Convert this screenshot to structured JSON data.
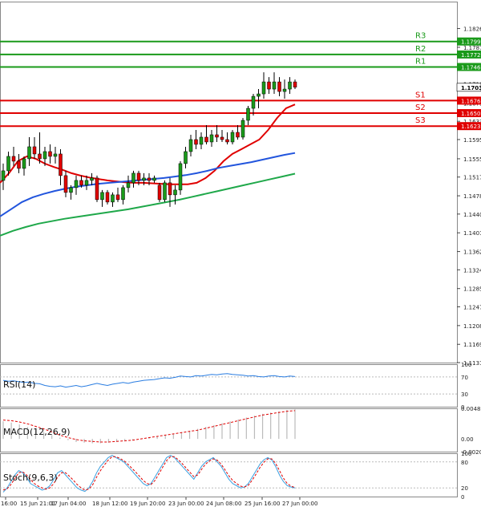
{
  "chart_data": [
    {
      "type": "line",
      "panel": "price",
      "description_note": "",
      "ylim": [
        1.1131,
        1.1882
      ],
      "y_ticks": [
        "1.18260",
        "1.17870",
        "1.17109",
        "1.16710",
        "1.16330",
        "1.15950",
        "1.15550",
        "1.15170",
        "1.14780",
        "1.14400",
        "1.14010",
        "1.13620",
        "1.13240",
        "1.12850",
        "1.12470",
        "1.12080",
        "1.11690",
        "1.11310"
      ],
      "current_price": "1.17037",
      "levels": [
        {
          "label": "R3",
          "value": 1.1799,
          "text": "1.17990",
          "color": "#1a9a1a"
        },
        {
          "label": "R2",
          "value": 1.1772,
          "text": "1.17720",
          "color": "#1a9a1a"
        },
        {
          "label": "R1",
          "value": 1.1746,
          "text": "1.17460",
          "color": "#1a9a1a"
        },
        {
          "label": "S1",
          "value": 1.1676,
          "text": "1.16760",
          "color": "#e00000"
        },
        {
          "label": "S2",
          "value": 1.165,
          "text": "1.16500",
          "color": "#e00000"
        },
        {
          "label": "S3",
          "value": 1.1623,
          "text": "1.16230",
          "color": "#e00000"
        }
      ],
      "candles": [
        {
          "o": 1.151,
          "h": 1.1545,
          "l": 1.149,
          "c": 1.153
        },
        {
          "o": 1.153,
          "h": 1.157,
          "l": 1.152,
          "c": 1.156
        },
        {
          "o": 1.156,
          "h": 1.158,
          "l": 1.154,
          "c": 1.155
        },
        {
          "o": 1.155,
          "h": 1.1565,
          "l": 1.1525,
          "c": 1.1535
        },
        {
          "o": 1.1535,
          "h": 1.156,
          "l": 1.152,
          "c": 1.1555
        },
        {
          "o": 1.1555,
          "h": 1.16,
          "l": 1.154,
          "c": 1.158
        },
        {
          "o": 1.158,
          "h": 1.16,
          "l": 1.1555,
          "c": 1.1565
        },
        {
          "o": 1.1565,
          "h": 1.161,
          "l": 1.1545,
          "c": 1.1555
        },
        {
          "o": 1.1555,
          "h": 1.158,
          "l": 1.154,
          "c": 1.157
        },
        {
          "o": 1.157,
          "h": 1.1585,
          "l": 1.1545,
          "c": 1.156
        },
        {
          "o": 1.156,
          "h": 1.158,
          "l": 1.1545,
          "c": 1.1565
        },
        {
          "o": 1.1565,
          "h": 1.1575,
          "l": 1.15,
          "c": 1.152
        },
        {
          "o": 1.152,
          "h": 1.153,
          "l": 1.1475,
          "c": 1.1485
        },
        {
          "o": 1.1485,
          "h": 1.15,
          "l": 1.147,
          "c": 1.1495
        },
        {
          "o": 1.1495,
          "h": 1.152,
          "l": 1.148,
          "c": 1.151
        },
        {
          "o": 1.151,
          "h": 1.152,
          "l": 1.1495,
          "c": 1.15
        },
        {
          "o": 1.15,
          "h": 1.152,
          "l": 1.149,
          "c": 1.151
        },
        {
          "o": 1.151,
          "h": 1.1525,
          "l": 1.15,
          "c": 1.1515
        },
        {
          "o": 1.1515,
          "h": 1.152,
          "l": 1.1465,
          "c": 1.147
        },
        {
          "o": 1.147,
          "h": 1.149,
          "l": 1.1455,
          "c": 1.1485
        },
        {
          "o": 1.1485,
          "h": 1.149,
          "l": 1.146,
          "c": 1.1465
        },
        {
          "o": 1.1465,
          "h": 1.1485,
          "l": 1.1455,
          "c": 1.148
        },
        {
          "o": 1.148,
          "h": 1.1495,
          "l": 1.1465,
          "c": 1.147
        },
        {
          "o": 1.147,
          "h": 1.15,
          "l": 1.146,
          "c": 1.1495
        },
        {
          "o": 1.1495,
          "h": 1.152,
          "l": 1.1485,
          "c": 1.1505
        },
        {
          "o": 1.1505,
          "h": 1.153,
          "l": 1.1495,
          "c": 1.1525
        },
        {
          "o": 1.1525,
          "h": 1.153,
          "l": 1.15,
          "c": 1.151
        },
        {
          "o": 1.151,
          "h": 1.1525,
          "l": 1.15,
          "c": 1.1515
        },
        {
          "o": 1.1515,
          "h": 1.1525,
          "l": 1.15,
          "c": 1.151
        },
        {
          "o": 1.151,
          "h": 1.152,
          "l": 1.1505,
          "c": 1.1515
        },
        {
          "o": 1.15,
          "h": 1.1505,
          "l": 1.1465,
          "c": 1.147
        },
        {
          "o": 1.147,
          "h": 1.151,
          "l": 1.1465,
          "c": 1.1505
        },
        {
          "o": 1.1505,
          "h": 1.1515,
          "l": 1.1455,
          "c": 1.148
        },
        {
          "o": 1.148,
          "h": 1.15,
          "l": 1.146,
          "c": 1.149
        },
        {
          "o": 1.149,
          "h": 1.155,
          "l": 1.148,
          "c": 1.1545
        },
        {
          "o": 1.1545,
          "h": 1.158,
          "l": 1.1535,
          "c": 1.157
        },
        {
          "o": 1.157,
          "h": 1.1605,
          "l": 1.156,
          "c": 1.1595
        },
        {
          "o": 1.1595,
          "h": 1.1615,
          "l": 1.1575,
          "c": 1.1585
        },
        {
          "o": 1.1585,
          "h": 1.161,
          "l": 1.1575,
          "c": 1.16
        },
        {
          "o": 1.16,
          "h": 1.1625,
          "l": 1.1585,
          "c": 1.159
        },
        {
          "o": 1.159,
          "h": 1.1615,
          "l": 1.158,
          "c": 1.1605
        },
        {
          "o": 1.1605,
          "h": 1.1625,
          "l": 1.159,
          "c": 1.16
        },
        {
          "o": 1.16,
          "h": 1.1615,
          "l": 1.159,
          "c": 1.1595
        },
        {
          "o": 1.1595,
          "h": 1.161,
          "l": 1.1585,
          "c": 1.159
        },
        {
          "o": 1.159,
          "h": 1.1615,
          "l": 1.1585,
          "c": 1.161
        },
        {
          "o": 1.161,
          "h": 1.1625,
          "l": 1.1595,
          "c": 1.16
        },
        {
          "o": 1.16,
          "h": 1.164,
          "l": 1.1595,
          "c": 1.1635
        },
        {
          "o": 1.1635,
          "h": 1.1665,
          "l": 1.1625,
          "c": 1.166
        },
        {
          "o": 1.166,
          "h": 1.169,
          "l": 1.1645,
          "c": 1.1685
        },
        {
          "o": 1.1685,
          "h": 1.17,
          "l": 1.166,
          "c": 1.169
        },
        {
          "o": 1.169,
          "h": 1.1735,
          "l": 1.168,
          "c": 1.1715
        },
        {
          "o": 1.1715,
          "h": 1.1725,
          "l": 1.169,
          "c": 1.17
        },
        {
          "o": 1.17,
          "h": 1.1735,
          "l": 1.169,
          "c": 1.1715
        },
        {
          "o": 1.1715,
          "h": 1.1725,
          "l": 1.1685,
          "c": 1.1695
        },
        {
          "o": 1.1695,
          "h": 1.172,
          "l": 1.168,
          "c": 1.17
        },
        {
          "o": 1.17,
          "h": 1.1725,
          "l": 1.169,
          "c": 1.1715
        },
        {
          "o": 1.1715,
          "h": 1.172,
          "l": 1.17,
          "c": 1.1704
        }
      ],
      "ma_series": [
        {
          "color": "#e00000",
          "values": [
            1.1505,
            1.1525,
            1.155,
            1.156,
            1.1555,
            1.1545,
            1.1538,
            1.1532,
            1.1525,
            1.152,
            1.1516,
            1.1513,
            1.151,
            1.1508,
            1.1506,
            1.1505,
            1.1505,
            1.1504,
            1.1503,
            1.1502,
            1.1502,
            1.1502,
            1.1505,
            1.1515,
            1.153,
            1.155,
            1.1565,
            1.1575,
            1.1585,
            1.1595,
            1.1615,
            1.164,
            1.166,
            1.1668
          ]
        },
        {
          "color": "#2255dd",
          "values": [
            1.1435,
            1.145,
            1.1465,
            1.1475,
            1.1482,
            1.1488,
            1.1493,
            1.1497,
            1.15,
            1.1503,
            1.1505,
            1.1507,
            1.1509,
            1.1511,
            1.1513,
            1.1515,
            1.1518,
            1.1521,
            1.1525,
            1.153,
            1.1536,
            1.154,
            1.1544,
            1.1548,
            1.1553,
            1.1558,
            1.1563,
            1.1567
          ]
        },
        {
          "color": "#1fa84a",
          "values": [
            1.1395,
            1.1405,
            1.1413,
            1.142,
            1.1425,
            1.143,
            1.1434,
            1.1438,
            1.1442,
            1.1446,
            1.145,
            1.1455,
            1.146,
            1.1465,
            1.147,
            1.1476,
            1.1482,
            1.1488,
            1.1494,
            1.15,
            1.1506,
            1.1512,
            1.1518,
            1.1524
          ]
        }
      ],
      "x_tick_labels": [
        "16:00",
        "15 Jun 21:01",
        "17 Jun 04:00",
        "18 Jun 12:00",
        "19 Jun 20:00",
        "23 Jun 00:00",
        "24 Jun 08:00",
        "25 Jun 16:00",
        "27 Jun 00:00"
      ]
    },
    {
      "type": "line",
      "panel": "rsi",
      "label": "RSI(14)",
      "ylim": [
        0,
        100
      ],
      "y_ticks": [
        "100",
        "70",
        "30",
        "0"
      ],
      "levels": [
        70,
        30
      ],
      "color": "#2a7de1",
      "values": [
        62,
        60,
        61,
        59,
        57,
        58,
        55,
        54,
        50,
        48,
        47,
        49,
        46,
        48,
        50,
        47,
        49,
        52,
        55,
        52,
        50,
        53,
        55,
        57,
        55,
        58,
        60,
        62,
        63,
        64,
        66,
        68,
        67,
        69,
        72,
        71,
        70,
        73,
        72,
        74,
        76,
        75,
        77,
        78,
        76,
        75,
        74,
        72,
        73,
        71,
        70,
        72,
        73,
        71,
        70,
        72,
        71
      ]
    },
    {
      "type": "bar",
      "panel": "macd",
      "label": "MACD(12,26,9)",
      "ylim": [
        -0.00203,
        0.00487
      ],
      "y_ticks": [
        "0.00487",
        "0.00",
        "-0.00203"
      ],
      "histogram": [
        0.0028,
        0.0026,
        0.0023,
        0.0019,
        0.0015,
        0.0011,
        0.0006,
        0.0002,
        -0.0002,
        -0.0005,
        -0.0006,
        -0.0007,
        -0.0007,
        -0.0006,
        -0.0005,
        -0.0004,
        -0.0002,
        0.0,
        0.0002,
        0.0004,
        0.0006,
        0.0008,
        0.001,
        0.0013,
        0.0016,
        0.0019,
        0.0022,
        0.0025,
        0.0028,
        0.0031,
        0.0034,
        0.0037,
        0.004,
        0.0042,
        0.0044,
        0.0046,
        0.0047
      ],
      "signal": [
        0.003,
        0.0029,
        0.0027,
        0.0024,
        0.002,
        0.0016,
        0.0011,
        0.0006,
        0.0002,
        -0.0001,
        -0.0003,
        -0.0004,
        -0.0005,
        -0.0005,
        -0.0004,
        -0.0003,
        -0.0002,
        0.0,
        0.0002,
        0.0004,
        0.0006,
        0.0008,
        0.001,
        0.0012,
        0.0014,
        0.0017,
        0.002,
        0.0023,
        0.0026,
        0.0029,
        0.0032,
        0.0035,
        0.0038,
        0.004,
        0.0042,
        0.0044,
        0.0045
      ],
      "bar_color": "#bbbbbb",
      "signal_color": "#e00000"
    },
    {
      "type": "line",
      "panel": "stoch",
      "label": "Stoch(9,6,3)",
      "ylim": [
        0,
        100
      ],
      "y_ticks": [
        "100",
        "80",
        "20",
        "0"
      ],
      "levels": [
        80,
        20
      ],
      "main": [
        10,
        20,
        35,
        50,
        60,
        55,
        45,
        30,
        25,
        20,
        15,
        18,
        25,
        40,
        55,
        60,
        50,
        40,
        30,
        20,
        15,
        12,
        20,
        35,
        55,
        70,
        80,
        90,
        95,
        90,
        85,
        80,
        70,
        60,
        50,
        40,
        30,
        25,
        30,
        45,
        60,
        75,
        90,
        95,
        90,
        80,
        70,
        60,
        50,
        40,
        55,
        70,
        80,
        85,
        90,
        80,
        70,
        55,
        40,
        30,
        25,
        20,
        22,
        30,
        45,
        60,
        75,
        85,
        90,
        85,
        70,
        50,
        35,
        25,
        22,
        20
      ],
      "signal": [
        15,
        18,
        28,
        42,
        55,
        57,
        50,
        40,
        30,
        24,
        20,
        17,
        20,
        30,
        45,
        55,
        55,
        47,
        38,
        28,
        20,
        15,
        17,
        27,
        45,
        60,
        73,
        84,
        92,
        92,
        88,
        83,
        75,
        66,
        57,
        47,
        37,
        30,
        28,
        37,
        52,
        68,
        83,
        92,
        92,
        85,
        76,
        66,
        56,
        46,
        50,
        63,
        75,
        82,
        87,
        84,
        75,
        62,
        48,
        37,
        30,
        24,
        22,
        26,
        38,
        52,
        67,
        79,
        87,
        87,
        77,
        60,
        43,
        30,
        24,
        21
      ],
      "main_color": "#3aa0e0",
      "signal_color": "#e00000"
    }
  ]
}
